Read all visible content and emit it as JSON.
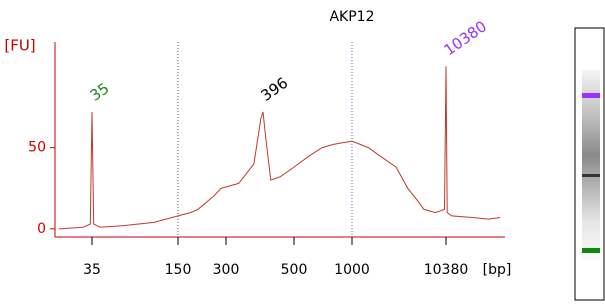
{
  "chart_data": {
    "type": "line",
    "title": "AKP12",
    "y_label": "[FU]",
    "x_label": "[bp]",
    "x": [
      20,
      30,
      34,
      35,
      36,
      40,
      60,
      100,
      150,
      180,
      200,
      250,
      280,
      330,
      370,
      390,
      396,
      405,
      420,
      450,
      500,
      600,
      700,
      800,
      1000,
      1500,
      2000,
      3000,
      4000,
      5000,
      6000,
      8000,
      10000,
      10380,
      10700,
      12000,
      20000,
      30000,
      40000
    ],
    "series": [
      {
        "name": "AKP12",
        "color": "#c0392b",
        "values": [
          0,
          1,
          3,
          72,
          3,
          1,
          2,
          4,
          8,
          10,
          12,
          20,
          25,
          28,
          40,
          68,
          72,
          55,
          30,
          32,
          38,
          45,
          50,
          52,
          54,
          50,
          45,
          38,
          25,
          18,
          12,
          10,
          12,
          100,
          10,
          8,
          7,
          6,
          7
        ]
      }
    ],
    "xlim": [
      20,
      40000
    ],
    "xticks": [
      35,
      150,
      300,
      500,
      1000,
      10380
    ],
    "ylim": [
      -5,
      115
    ],
    "yticks": [
      0,
      50
    ],
    "annotations": [
      {
        "text": "35",
        "x": 35,
        "y": 72,
        "color": "#1a8a1a"
      },
      {
        "text": "396",
        "x": 396,
        "y": 72,
        "color": "#000000"
      },
      {
        "text": "10380",
        "x": 10380,
        "y": 100,
        "color": "#9b30ff"
      }
    ]
  }
}
